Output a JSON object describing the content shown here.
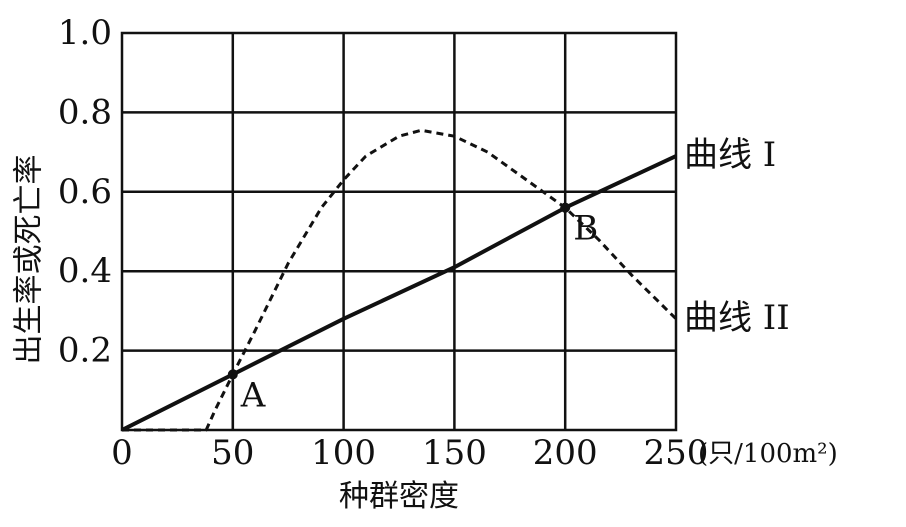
{
  "chart_data": {
    "type": "line",
    "xlabel": "种群密度",
    "ylabel": "出生率或死亡率",
    "x_unit": "(只/100m²)",
    "xlim": [
      0,
      250
    ],
    "ylim": [
      0,
      1.0
    ],
    "x_ticks": [
      0,
      50,
      100,
      150,
      200,
      250
    ],
    "y_ticks": [
      0.2,
      0.4,
      0.6,
      0.8,
      1.0
    ],
    "x_tick_labels": [
      "0",
      "50",
      "100",
      "150",
      "200",
      "250"
    ],
    "y_tick_labels": [
      "0.2",
      "0.4",
      "0.6",
      "0.8",
      "1.0"
    ],
    "grid": true,
    "series": [
      {
        "name": "曲线 I",
        "style": "solid",
        "points": [
          [
            0,
            0.0
          ],
          [
            50,
            0.14
          ],
          [
            100,
            0.28
          ],
          [
            150,
            0.41
          ],
          [
            200,
            0.56
          ],
          [
            250,
            0.69
          ]
        ]
      },
      {
        "name": "曲线 II",
        "style": "dashed",
        "points": [
          [
            0,
            0.0
          ],
          [
            38,
            0.0
          ],
          [
            42,
            0.05
          ],
          [
            50,
            0.14
          ],
          [
            60,
            0.25
          ],
          [
            75,
            0.42
          ],
          [
            90,
            0.56
          ],
          [
            100,
            0.63
          ],
          [
            110,
            0.69
          ],
          [
            125,
            0.74
          ],
          [
            135,
            0.755
          ],
          [
            150,
            0.74
          ],
          [
            165,
            0.7
          ],
          [
            180,
            0.64
          ],
          [
            200,
            0.56
          ],
          [
            215,
            0.48
          ],
          [
            230,
            0.39
          ],
          [
            250,
            0.28
          ]
        ]
      }
    ],
    "annotations": [
      {
        "label": "A",
        "x": 50,
        "y": 0.14
      },
      {
        "label": "B",
        "x": 200,
        "y": 0.56
      }
    ]
  }
}
